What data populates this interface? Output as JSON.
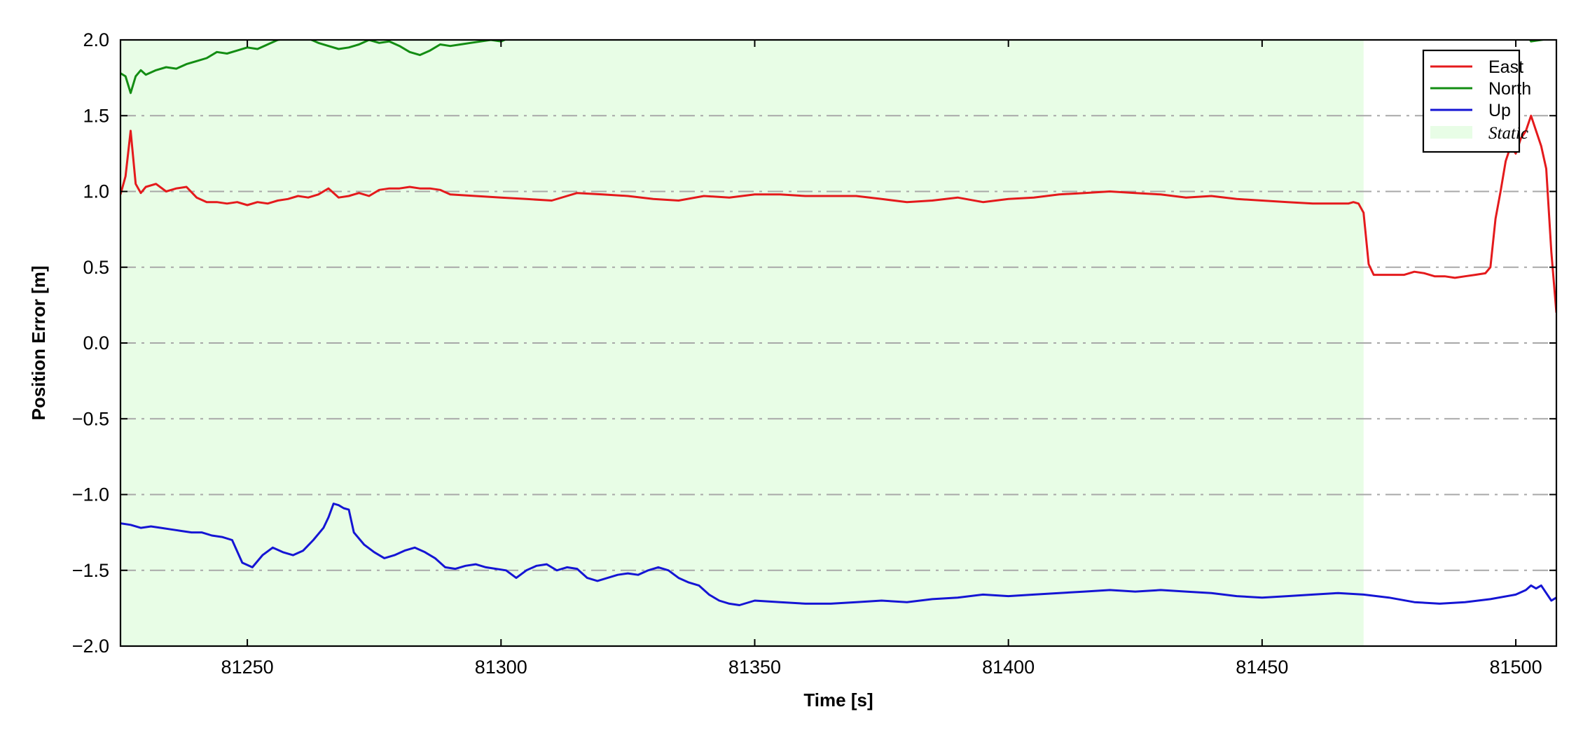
{
  "chart_data": {
    "type": "line",
    "xlabel": "Time [s]",
    "ylabel": "Position Error [m]",
    "xlim": [
      81225,
      81508
    ],
    "ylim": [
      -2.0,
      2.0
    ],
    "xticks": [
      81250,
      81300,
      81350,
      81400,
      81450,
      81500
    ],
    "yticks": [
      -2.0,
      -1.5,
      -1.0,
      -0.5,
      0.0,
      0.5,
      1.0,
      1.5,
      2.0
    ],
    "ytick_labels": [
      "−2.0",
      "−1.5",
      "−1.0",
      "−0.5",
      "0.0",
      "0.5",
      "1.0",
      "1.5",
      "2.0"
    ],
    "grid": "horizontal dash-dot",
    "legend_position": "top-right",
    "shaded_region": {
      "name": "Static",
      "x_start": 81225,
      "x_end": 81470,
      "color": "#e8fde6"
    },
    "series": [
      {
        "name": "East",
        "color": "#e41a1c",
        "x": [
          81225,
          81226,
          81227,
          81228,
          81229,
          81230,
          81232,
          81234,
          81236,
          81238,
          81240,
          81242,
          81244,
          81246,
          81248,
          81250,
          81252,
          81254,
          81256,
          81258,
          81260,
          81262,
          81264,
          81266,
          81268,
          81270,
          81272,
          81274,
          81276,
          81278,
          81280,
          81282,
          81284,
          81286,
          81288,
          81290,
          81295,
          81300,
          81305,
          81310,
          81315,
          81320,
          81325,
          81330,
          81335,
          81340,
          81345,
          81350,
          81355,
          81360,
          81365,
          81370,
          81375,
          81380,
          81385,
          81390,
          81395,
          81400,
          81405,
          81410,
          81415,
          81420,
          81425,
          81430,
          81435,
          81440,
          81445,
          81450,
          81455,
          81460,
          81465,
          81467,
          81468,
          81469,
          81470,
          81471,
          81472,
          81475,
          81478,
          81480,
          81482,
          81484,
          81486,
          81488,
          81490,
          81492,
          81494,
          81495,
          81496,
          81497,
          81498,
          81499,
          81500,
          81501,
          81502,
          81503,
          81504,
          81505,
          81506,
          81507,
          81508
        ],
        "values": [
          0.98,
          1.1,
          1.4,
          1.05,
          0.99,
          1.03,
          1.05,
          1.0,
          1.02,
          1.03,
          0.96,
          0.93,
          0.93,
          0.92,
          0.93,
          0.91,
          0.93,
          0.92,
          0.94,
          0.95,
          0.97,
          0.96,
          0.98,
          1.02,
          0.96,
          0.97,
          0.99,
          0.97,
          1.01,
          1.02,
          1.02,
          1.03,
          1.02,
          1.02,
          1.01,
          0.98,
          0.97,
          0.96,
          0.95,
          0.94,
          0.99,
          0.98,
          0.97,
          0.95,
          0.94,
          0.97,
          0.96,
          0.98,
          0.98,
          0.97,
          0.97,
          0.97,
          0.95,
          0.93,
          0.94,
          0.96,
          0.93,
          0.95,
          0.96,
          0.98,
          0.99,
          1.0,
          0.99,
          0.98,
          0.96,
          0.97,
          0.95,
          0.94,
          0.93,
          0.92,
          0.92,
          0.92,
          0.93,
          0.92,
          0.86,
          0.52,
          0.45,
          0.45,
          0.45,
          0.47,
          0.46,
          0.44,
          0.44,
          0.43,
          0.44,
          0.45,
          0.46,
          0.5,
          0.82,
          1.0,
          1.2,
          1.3,
          1.25,
          1.35,
          1.4,
          1.5,
          1.4,
          1.3,
          1.15,
          0.6,
          0.2
        ]
      },
      {
        "name": "North",
        "color": "#138d13",
        "x": [
          81225,
          81226,
          81227,
          81228,
          81229,
          81230,
          81232,
          81234,
          81236,
          81238,
          81240,
          81242,
          81244,
          81246,
          81248,
          81250,
          81252,
          81254,
          81256,
          81258,
          81260,
          81262,
          81264,
          81266,
          81268,
          81270,
          81272,
          81274,
          81276,
          81278,
          81280,
          81282,
          81284,
          81286,
          81288,
          81290,
          81292,
          81294,
          81296,
          81298,
          81300,
          81302,
          81303,
          81502,
          81503,
          81505,
          81507,
          81508
        ],
        "values": [
          1.78,
          1.76,
          1.65,
          1.76,
          1.8,
          1.77,
          1.8,
          1.82,
          1.81,
          1.84,
          1.86,
          1.88,
          1.92,
          1.91,
          1.93,
          1.95,
          1.94,
          1.97,
          2.0,
          2.01,
          2.02,
          2.01,
          1.98,
          1.96,
          1.94,
          1.95,
          1.97,
          2.0,
          1.98,
          1.99,
          1.96,
          1.92,
          1.9,
          1.93,
          1.97,
          1.96,
          1.97,
          1.98,
          1.99,
          2.0,
          1.99,
          2.02,
          2.05,
          2.05,
          1.99,
          2.0,
          2.01,
          2.03
        ]
      },
      {
        "name": "Up",
        "color": "#1515d4",
        "x": [
          81225,
          81227,
          81229,
          81231,
          81233,
          81235,
          81237,
          81239,
          81241,
          81243,
          81245,
          81247,
          81249,
          81251,
          81253,
          81255,
          81257,
          81259,
          81261,
          81263,
          81265,
          81266,
          81267,
          81268,
          81269,
          81270,
          81271,
          81273,
          81275,
          81277,
          81279,
          81281,
          81283,
          81285,
          81287,
          81289,
          81291,
          81293,
          81295,
          81297,
          81299,
          81301,
          81303,
          81305,
          81307,
          81309,
          81311,
          81313,
          81315,
          81317,
          81319,
          81321,
          81323,
          81325,
          81327,
          81329,
          81331,
          81333,
          81335,
          81337,
          81339,
          81341,
          81343,
          81345,
          81347,
          81350,
          81355,
          81360,
          81365,
          81370,
          81375,
          81380,
          81385,
          81390,
          81395,
          81400,
          81405,
          81410,
          81415,
          81420,
          81425,
          81430,
          81435,
          81440,
          81445,
          81450,
          81455,
          81460,
          81465,
          81470,
          81475,
          81480,
          81485,
          81490,
          81495,
          81500,
          81502,
          81503,
          81504,
          81505,
          81506,
          81507,
          81508
        ],
        "values": [
          -1.19,
          -1.2,
          -1.22,
          -1.21,
          -1.22,
          -1.23,
          -1.24,
          -1.25,
          -1.25,
          -1.27,
          -1.28,
          -1.3,
          -1.45,
          -1.48,
          -1.4,
          -1.35,
          -1.38,
          -1.4,
          -1.37,
          -1.3,
          -1.22,
          -1.15,
          -1.06,
          -1.07,
          -1.09,
          -1.1,
          -1.25,
          -1.33,
          -1.38,
          -1.42,
          -1.4,
          -1.37,
          -1.35,
          -1.38,
          -1.42,
          -1.48,
          -1.49,
          -1.47,
          -1.46,
          -1.48,
          -1.49,
          -1.5,
          -1.55,
          -1.5,
          -1.47,
          -1.46,
          -1.5,
          -1.48,
          -1.49,
          -1.55,
          -1.57,
          -1.55,
          -1.53,
          -1.52,
          -1.53,
          -1.5,
          -1.48,
          -1.5,
          -1.55,
          -1.58,
          -1.6,
          -1.66,
          -1.7,
          -1.72,
          -1.73,
          -1.7,
          -1.71,
          -1.72,
          -1.72,
          -1.71,
          -1.7,
          -1.71,
          -1.69,
          -1.68,
          -1.66,
          -1.67,
          -1.66,
          -1.65,
          -1.64,
          -1.63,
          -1.64,
          -1.63,
          -1.64,
          -1.65,
          -1.67,
          -1.68,
          -1.67,
          -1.66,
          -1.65,
          -1.66,
          -1.68,
          -1.71,
          -1.72,
          -1.71,
          -1.69,
          -1.66,
          -1.63,
          -1.6,
          -1.62,
          -1.6,
          -1.65,
          -1.7,
          -1.68
        ]
      }
    ]
  }
}
